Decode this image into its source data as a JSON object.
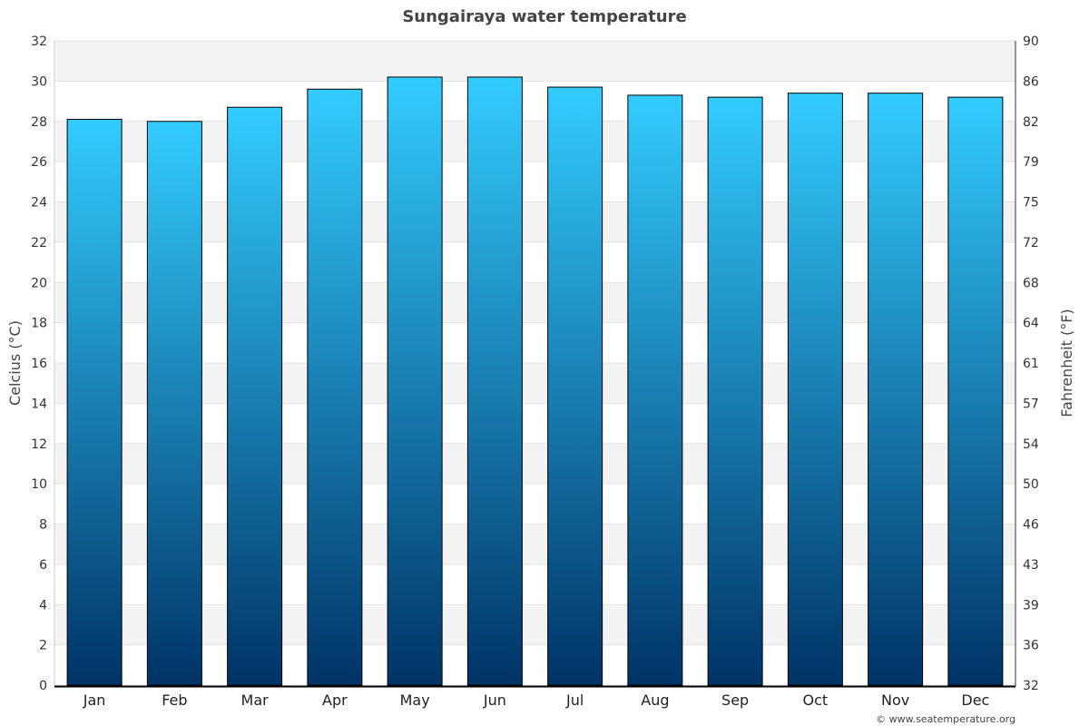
{
  "chart_data": {
    "type": "bar",
    "title": "Sungairaya water temperature",
    "categories": [
      "Jan",
      "Feb",
      "Mar",
      "Apr",
      "May",
      "Jun",
      "Jul",
      "Aug",
      "Sep",
      "Oct",
      "Nov",
      "Dec"
    ],
    "values": [
      28.1,
      28.0,
      28.7,
      29.6,
      30.2,
      30.2,
      29.7,
      29.3,
      29.2,
      29.4,
      29.4,
      29.2
    ],
    "ylabel": "Celcius (°C)",
    "ylabel_right": "Fahrenheit (°F)",
    "ylim": [
      0,
      32
    ],
    "yticks": [
      "0",
      "2",
      "4",
      "6",
      "8",
      "10",
      "12",
      "14",
      "16",
      "18",
      "20",
      "22",
      "24",
      "26",
      "28",
      "30",
      "32"
    ],
    "yticks_right": [
      "32",
      "36",
      "39",
      "43",
      "46",
      "50",
      "54",
      "57",
      "61",
      "64",
      "68",
      "72",
      "75",
      "79",
      "82",
      "86",
      "90"
    ],
    "grid": true,
    "colors": {
      "bar_top": "#33ccff",
      "bar_bottom": "#003366",
      "band": "#f3f3f3"
    }
  },
  "credit": "© www.seatemperature.org"
}
